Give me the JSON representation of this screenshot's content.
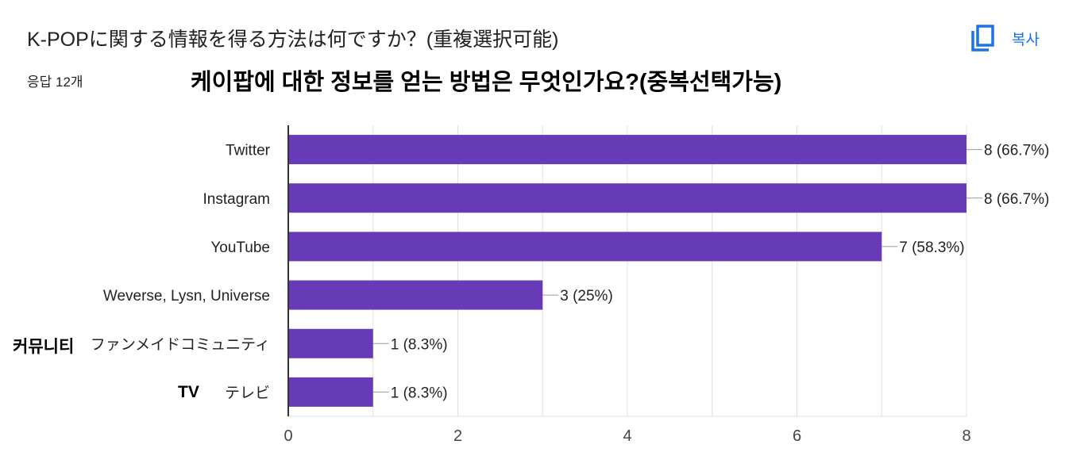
{
  "header": {
    "title": "K-POPに関する情報を得る方法は何ですか？(重複選択可能)",
    "response_count": "응답 12개",
    "copy_label": "복사",
    "copy_icon": "copy-icon",
    "overlay_title": "케이팝에 대한 정보를 얻는 방법은 무엇인가요?(중복선택가능)"
  },
  "annotations": {
    "community": "커뮤니티",
    "tv": "TV"
  },
  "colors": {
    "bar": "#673ab7",
    "accent": "#1a73e8",
    "grid": "#e0e0e0",
    "axis": "#333333"
  },
  "chart_data": {
    "type": "bar",
    "orientation": "horizontal",
    "categories": [
      "Twitter",
      "Instagram",
      "YouTube",
      "Weverse, Lysn, Universe",
      "ファンメイドコミュニティ",
      "テレビ"
    ],
    "values": [
      8,
      8,
      7,
      3,
      1,
      1
    ],
    "data_labels": [
      "8 (66.7%)",
      "8 (66.7%)",
      "7 (58.3%)",
      "3 (25%)",
      "1 (8.3%)",
      "1 (8.3%)"
    ],
    "xlim": [
      0,
      8
    ],
    "xticks": [
      0,
      2,
      4,
      6,
      8
    ],
    "grid": true,
    "title": "K-POPに関する情報を得る方法は何ですか？(重複選択可能)",
    "xlabel": "",
    "ylabel": ""
  }
}
